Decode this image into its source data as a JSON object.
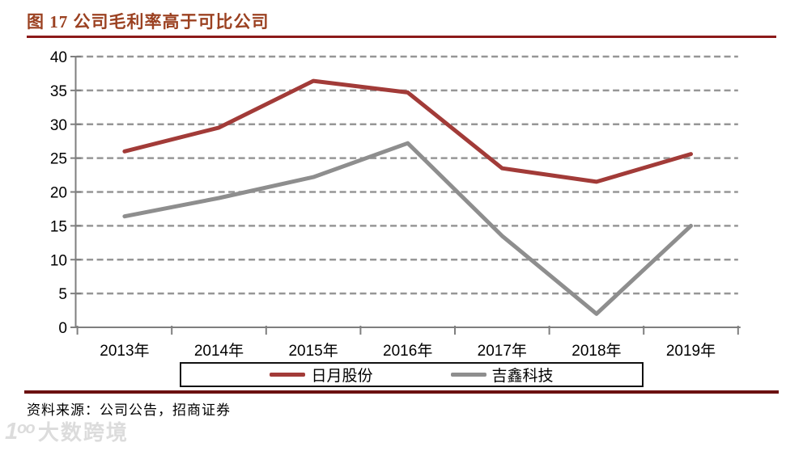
{
  "header": {
    "title": "图 17 公司毛利率高于可比公司"
  },
  "footer": {
    "source_note": "资料来源：公司公告，招商证券"
  },
  "watermark": {
    "logo": "1ᵒᵒ",
    "brand": "大数跨境"
  },
  "colors": {
    "title_text": "#9B4121",
    "title_rule": "#8C1A1A",
    "bottom_rule": "#6B1111",
    "grid": "#969696",
    "axis": "#7F7F7F",
    "label_text": "#000000"
  },
  "chart_data": {
    "type": "line",
    "title": "",
    "xlabel": "",
    "ylabel": "",
    "categories": [
      "2013年",
      "2014年",
      "2015年",
      "2016年",
      "2017年",
      "2018年",
      "2019年"
    ],
    "series": [
      {
        "name": "日月股份",
        "color": "#A23B38",
        "values": [
          26.0,
          29.5,
          36.4,
          34.7,
          23.5,
          21.5,
          25.6
        ]
      },
      {
        "name": "吉鑫科技",
        "color": "#8E8E8E",
        "values": [
          16.4,
          19.1,
          22.2,
          27.2,
          13.5,
          2.0,
          15.0
        ]
      }
    ],
    "ylim": [
      0,
      40
    ],
    "yticks": [
      0,
      5,
      10,
      15,
      20,
      25,
      30,
      35,
      40
    ],
    "grid": "horizontal-dashed",
    "legend_position": "bottom-boxed-center"
  }
}
